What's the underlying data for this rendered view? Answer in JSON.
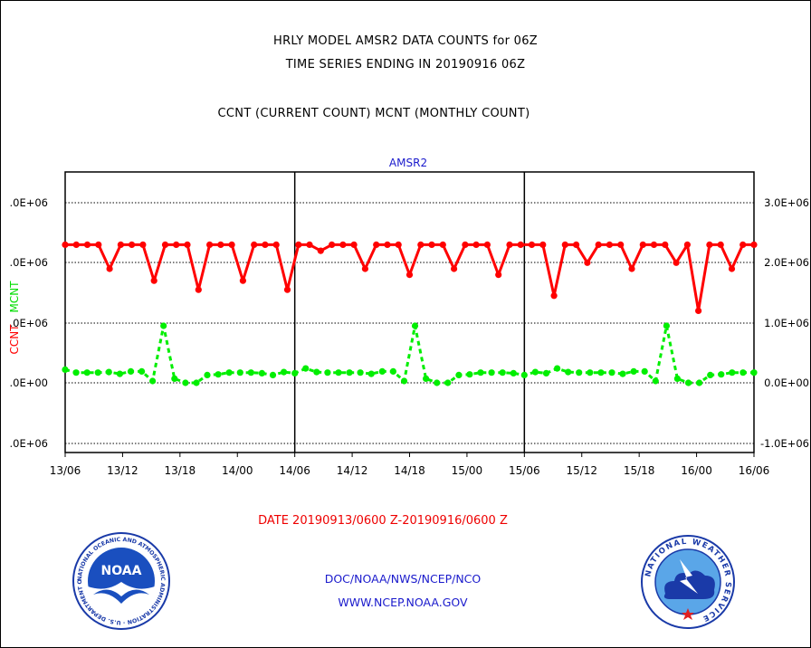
{
  "header": {
    "title_line1": "HRLY MODEL AMSR2 DATA COUNTS for 06Z",
    "title_line2": "TIME SERIES ENDING IN 20190916 06Z",
    "subtitle": "CCNT (CURRENT COUNT) MCNT (MONTHLY COUNT)"
  },
  "chart_data": {
    "type": "line",
    "title": "AMSR2",
    "ylabel_left_parts": [
      "CCNT",
      "MCNT"
    ],
    "xlabel": "DATE 20190913/0600 Z-20190916/0600 Z",
    "x_tick_labels": [
      "13/06",
      "13/12",
      "13/18",
      "14/00",
      "14/06",
      "14/12",
      "14/18",
      "15/00",
      "15/06",
      "15/12",
      "15/18",
      "16/00",
      "16/06"
    ],
    "y_tick_labels_left": [
      ".0E+06",
      ".0E+06",
      ".0E+06",
      ".0E+00",
      ".0E+06"
    ],
    "y_tick_labels_right": [
      "3.0E+06",
      "2.0E+06",
      "1.0E+06",
      "0.0E+00",
      "-1.0E+06"
    ],
    "ylim": [
      -1000000,
      3300000
    ],
    "x_unit": "hours since 13/06",
    "xlim": [
      0,
      72
    ],
    "grid": "horizontal dotted",
    "series": [
      {
        "name": "CCNT",
        "color": "#ff0000",
        "values": [
          2300000,
          2300000,
          2300000,
          2300000,
          1900000,
          2300000,
          2300000,
          2300000,
          1700000,
          2300000,
          2300000,
          2300000,
          1550000,
          2300000,
          2300000,
          2300000,
          1700000,
          2300000,
          2300000,
          2300000,
          1550000,
          2300000,
          2300000,
          2200000,
          2300000,
          2300000,
          2300000,
          1900000,
          2300000,
          2300000,
          2300000,
          1800000,
          2300000,
          2300000,
          2300000,
          1900000,
          2300000,
          2300000,
          2300000,
          1800000,
          2300000,
          2300000,
          2300000,
          2300000,
          1450000,
          2300000,
          2300000,
          2000000,
          2300000,
          2300000,
          2300000,
          1900000,
          2300000,
          2300000,
          2300000,
          2000000,
          2300000,
          1200000,
          2300000,
          2300000,
          1900000,
          2300000,
          2300000
        ]
      },
      {
        "name": "MCNT",
        "color": "#00ee00",
        "values": [
          220000,
          170000,
          170000,
          170000,
          180000,
          150000,
          190000,
          190000,
          30000,
          950000,
          70000,
          0,
          0,
          130000,
          140000,
          170000,
          170000,
          170000,
          160000,
          130000,
          180000,
          160000,
          240000,
          180000,
          170000,
          170000,
          170000,
          170000,
          150000,
          190000,
          190000,
          30000,
          950000,
          70000,
          0,
          0,
          130000,
          140000,
          170000,
          170000,
          170000,
          160000,
          130000,
          180000,
          160000,
          240000,
          180000,
          170000,
          170000,
          170000,
          170000,
          150000,
          190000,
          190000,
          30000,
          950000,
          70000,
          0,
          0,
          130000,
          140000,
          170000,
          170000,
          170000
        ]
      }
    ]
  },
  "footer": {
    "link1": "DOC/NOAA/NWS/NCEP/NCO",
    "link2": "WWW.NCEP.NOAA.GOV"
  },
  "logos": {
    "noaa_center_text": "NOAA",
    "noaa_ring_text": "NATIONAL OCEANIC AND ATMOSPHERIC ADMINISTRATION · U.S. DEPARTMENT OF COMMERCE",
    "nws_ring_text": "NATIONAL WEATHER SERVICE"
  }
}
